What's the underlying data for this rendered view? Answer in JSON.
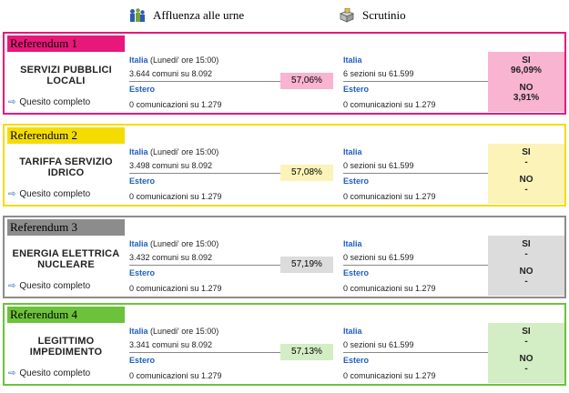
{
  "header": {
    "affluenza_label": "Affluenza alle urne",
    "scrutinio_label": "Scrutinio"
  },
  "quesito_label": "Quesito completo",
  "referendums": [
    {
      "title": "Referendum 1",
      "name_line1": "SERVIZI PUBBLICI",
      "name_line2": "LOCALI",
      "color": "#e8177a",
      "fill": "#f8b4d0",
      "aff_italia_label": "Italia",
      "aff_italia_when": " (Lunedi' ore 15:00)",
      "aff_comuni": "3.644 comuni su 8.092",
      "aff_estero_label": "Estero",
      "aff_comunicazioni": "0 comunicazioni su 1.279",
      "pct": "57,06%",
      "scr_italia_label": "Italia",
      "scr_sezioni": "6 sezioni su 61.599",
      "scr_estero_label": "Estero",
      "scr_comunicazioni": "0 comunicazioni su 1.279",
      "si_label": "SI",
      "si_value": "96,09%",
      "no_label": "NO",
      "no_value": "3,91%"
    },
    {
      "title": "Referendum 2",
      "name_line1": "TARIFFA SERVIZIO",
      "name_line2": "IDRICO",
      "color": "#f5dc00",
      "fill": "#fbf3b8",
      "aff_italia_label": "Italia",
      "aff_italia_when": " (Lunedi' ore 15:00)",
      "aff_comuni": "3.498 comuni su 8.092",
      "aff_estero_label": "Estero",
      "aff_comunicazioni": "0 comunicazioni su 1.279",
      "pct": "57,08%",
      "scr_italia_label": "Italia",
      "scr_sezioni": "0 sezioni su 61.599",
      "scr_estero_label": "Estero",
      "scr_comunicazioni": "0 comunicazioni su 1.279",
      "si_label": "SI",
      "si_value": "-",
      "no_label": "NO",
      "no_value": "-"
    },
    {
      "title": "Referendum 3",
      "name_line1": "ENERGIA ELETTRICA",
      "name_line2": "NUCLEARE",
      "color": "#8c8c8c",
      "fill": "#dcdcdc",
      "aff_italia_label": "Italia",
      "aff_italia_when": " (Lunedi' ore 15:00)",
      "aff_comuni": "3.432 comuni su 8.092",
      "aff_estero_label": "Estero",
      "aff_comunicazioni": "0 comunicazioni su 1.279",
      "pct": "57,19%",
      "scr_italia_label": "Italia",
      "scr_sezioni": "0 sezioni su 61.599",
      "scr_estero_label": "Estero",
      "scr_comunicazioni": "0 comunicazioni su 1.279",
      "si_label": "SI",
      "si_value": "-",
      "no_label": "NO",
      "no_value": "-"
    },
    {
      "title": "Referendum 4",
      "name_line1": "LEGITTIMO",
      "name_line2": "IMPEDIMENTO",
      "color": "#6cc23a",
      "fill": "#d3edc4",
      "aff_italia_label": "Italia",
      "aff_italia_when": " (Lunedi' ore 15:00)",
      "aff_comuni": "3.341 comuni su 8.092",
      "aff_estero_label": "Estero",
      "aff_comunicazioni": "0 comunicazioni su 1.279",
      "pct": "57,13%",
      "scr_italia_label": "Italia",
      "scr_sezioni": "0 sezioni su 61.599",
      "scr_estero_label": "Estero",
      "scr_comunicazioni": "0 comunicazioni su 1.279",
      "si_label": "SI",
      "si_value": "-",
      "no_label": "NO",
      "no_value": "-"
    }
  ]
}
